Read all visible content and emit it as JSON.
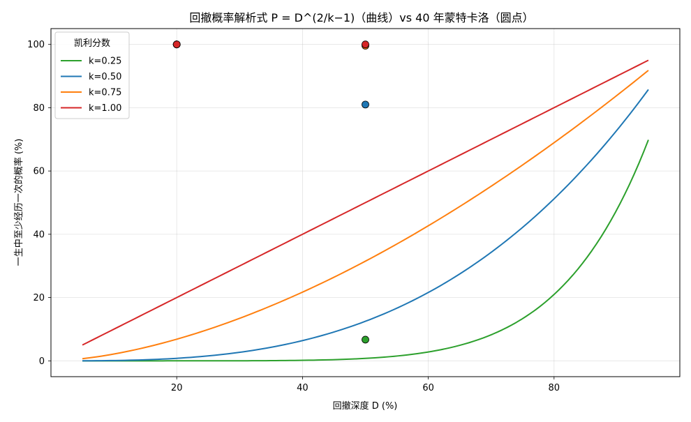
{
  "chart_data": {
    "type": "line",
    "title": "回撤概率解析式 P = D^(2/k−1)（曲线）vs 40 年蒙特卡洛（圆点）",
    "xlabel": "回撤深度 D (%)",
    "ylabel": "一生中至少经历一次的概率 (%)",
    "xlim": [
      0,
      100
    ],
    "ylim": [
      -5,
      105
    ],
    "x_ticks": [
      20,
      40,
      60,
      80
    ],
    "y_ticks": [
      0,
      20,
      40,
      60,
      80,
      100
    ],
    "grid": true,
    "legend": {
      "title": "凯利分数",
      "placement": "top-left"
    },
    "curve_range": [
      5,
      95
    ],
    "series": [
      {
        "name": "k=0.25",
        "k": 0.25,
        "color": "#2ca02c",
        "mc_points": [
          {
            "x": 20,
            "y": 100
          },
          {
            "x": 50,
            "y": 6.7
          }
        ]
      },
      {
        "name": "k=0.50",
        "k": 0.5,
        "color": "#1f77b4",
        "mc_points": [
          {
            "x": 20,
            "y": 100
          },
          {
            "x": 50,
            "y": 81
          }
        ]
      },
      {
        "name": "k=0.75",
        "k": 0.75,
        "color": "#ff7f0e",
        "mc_points": [
          {
            "x": 20,
            "y": 100
          },
          {
            "x": 50,
            "y": 99.6
          }
        ]
      },
      {
        "name": "k=1.00",
        "k": 1.0,
        "color": "#d62728",
        "mc_points": [
          {
            "x": 20,
            "y": 100
          },
          {
            "x": 50,
            "y": 100
          }
        ]
      }
    ]
  }
}
